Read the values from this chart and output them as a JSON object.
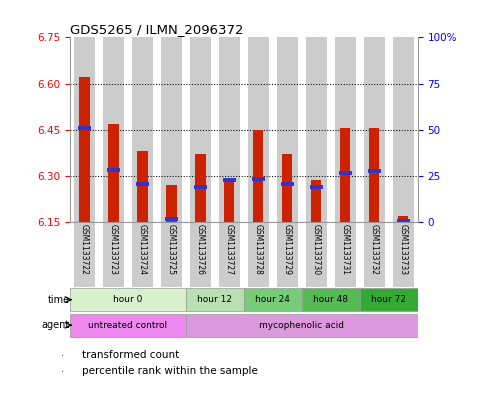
{
  "title": "GDS5265 / ILMN_2096372",
  "samples": [
    "GSM1133722",
    "GSM1133723",
    "GSM1133724",
    "GSM1133725",
    "GSM1133726",
    "GSM1133727",
    "GSM1133728",
    "GSM1133729",
    "GSM1133730",
    "GSM1133731",
    "GSM1133732",
    "GSM1133733"
  ],
  "bar_tops": [
    6.62,
    6.47,
    6.38,
    6.27,
    6.37,
    6.285,
    6.45,
    6.37,
    6.285,
    6.455,
    6.457,
    6.17
  ],
  "bar_bottoms": [
    6.15,
    6.15,
    6.15,
    6.15,
    6.15,
    6.15,
    6.15,
    6.15,
    6.15,
    6.15,
    6.15,
    6.15
  ],
  "percentile_values": [
    6.455,
    6.32,
    6.275,
    6.16,
    6.265,
    6.285,
    6.29,
    6.275,
    6.265,
    6.31,
    6.315,
    6.155
  ],
  "ylim_left": [
    6.15,
    6.75
  ],
  "ylim_right": [
    0,
    100
  ],
  "yticks_left": [
    6.15,
    6.3,
    6.45,
    6.6,
    6.75
  ],
  "yticks_right": [
    0,
    25,
    50,
    75,
    100
  ],
  "bar_color": "#cc2200",
  "percentile_color": "#3333cc",
  "col_bg_color": "#cccccc",
  "time_groups": [
    {
      "label": "hour 0",
      "start": 0,
      "end": 4,
      "color": "#d8f0cc"
    },
    {
      "label": "hour 12",
      "start": 4,
      "end": 6,
      "color": "#b8e0b0"
    },
    {
      "label": "hour 24",
      "start": 6,
      "end": 8,
      "color": "#77cc77"
    },
    {
      "label": "hour 48",
      "start": 8,
      "end": 10,
      "color": "#55bb55"
    },
    {
      "label": "hour 72",
      "start": 10,
      "end": 12,
      "color": "#33aa33"
    }
  ],
  "agent_groups": [
    {
      "label": "untreated control",
      "start": 0,
      "end": 4,
      "color": "#ee88ee"
    },
    {
      "label": "mycophenolic acid",
      "start": 4,
      "end": 12,
      "color": "#dd99dd"
    }
  ],
  "legend_items": [
    {
      "label": "transformed count",
      "color": "#cc2200"
    },
    {
      "label": "percentile rank within the sample",
      "color": "#3333cc"
    }
  ]
}
